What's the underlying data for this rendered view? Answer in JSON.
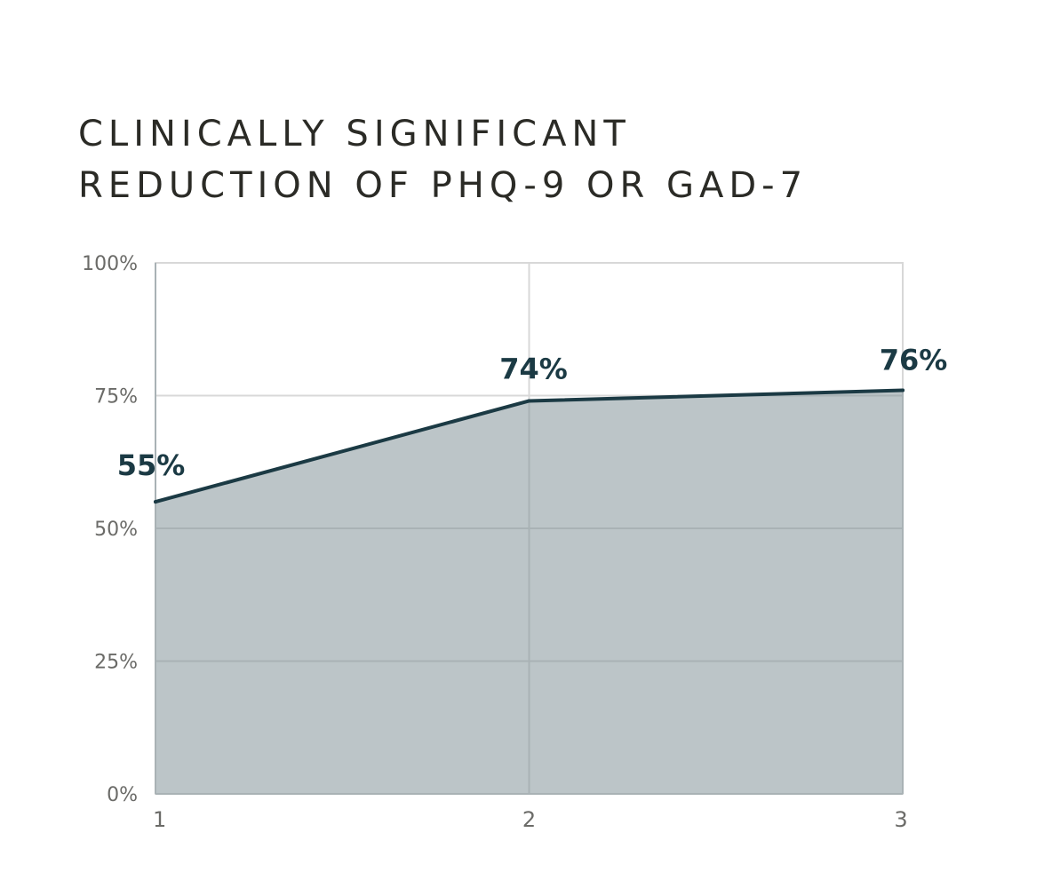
{
  "title_lines": [
    "CLINICALLY SIGNIFICANT",
    "REDUCTION OF PHQ-9 OR GAD-7"
  ],
  "colors": {
    "title": "#2b2b26",
    "line": "#1b3a44",
    "area": "#bcc5c8",
    "grid": "#d8d8d8",
    "grid_over_area": "#a9b2b5",
    "tick_label": "#6b6b68",
    "data_label": "#1b3a44"
  },
  "chart_data": {
    "type": "area",
    "title": "CLINICALLY SIGNIFICANT REDUCTION OF PHQ-9 OR GAD-7",
    "x": [
      1,
      2,
      3
    ],
    "x_tick_labels": [
      "1",
      "2",
      "3"
    ],
    "series": [
      {
        "values": [
          55,
          74,
          76
        ],
        "data_labels": [
          "55%",
          "74%",
          "76%"
        ]
      }
    ],
    "xlabel": "",
    "ylabel": "",
    "ylim": [
      0,
      100
    ],
    "y_ticks": [
      0,
      25,
      50,
      75,
      100
    ],
    "y_tick_labels": [
      "0%",
      "25%",
      "50%",
      "75%",
      "100%"
    ],
    "grid": true,
    "legend": "none"
  }
}
